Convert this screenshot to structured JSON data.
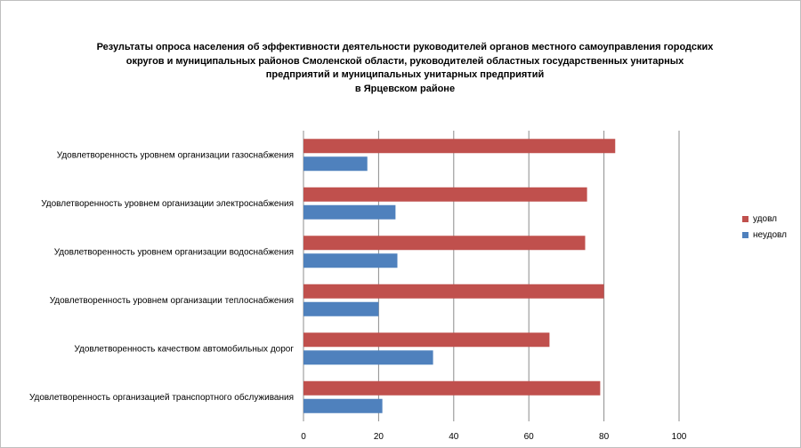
{
  "chart_data": {
    "type": "bar",
    "orientation": "horizontal",
    "title_lines": [
      "Результаты опроса населения об эффективности деятельности руководителей органов местного самоуправления городских",
      "округов и муниципальных районов Смоленской области, руководителей областных государственных унитарных",
      "предприятий и муниципальных унитарных предприятий",
      "в Ярцевском районе"
    ],
    "categories": [
      "Удовлетворенность уровнем организации газоснабжения",
      "Удовлетворенность уровнем организации электроснабжения",
      "Удовлетворенность уровнем организации водоснабжения",
      "Удовлетворенность уровнем организации теплоснабжения",
      "Удовлетворенность качеством автомобильных дорог",
      "Удовлетворенность организацией транспортного обслуживания"
    ],
    "series": [
      {
        "name": "удовл",
        "color": "#c0504d",
        "values": [
          83,
          75.5,
          75,
          80,
          65.5,
          79
        ]
      },
      {
        "name": "неудовл",
        "color": "#4f81bd",
        "values": [
          17,
          24.5,
          25,
          20,
          34.5,
          21
        ]
      }
    ],
    "xlim": [
      0,
      100
    ],
    "xticks": [
      "0",
      "20",
      "40",
      "60",
      "80",
      "100"
    ],
    "grid": "vertical",
    "legend_position": "right"
  }
}
